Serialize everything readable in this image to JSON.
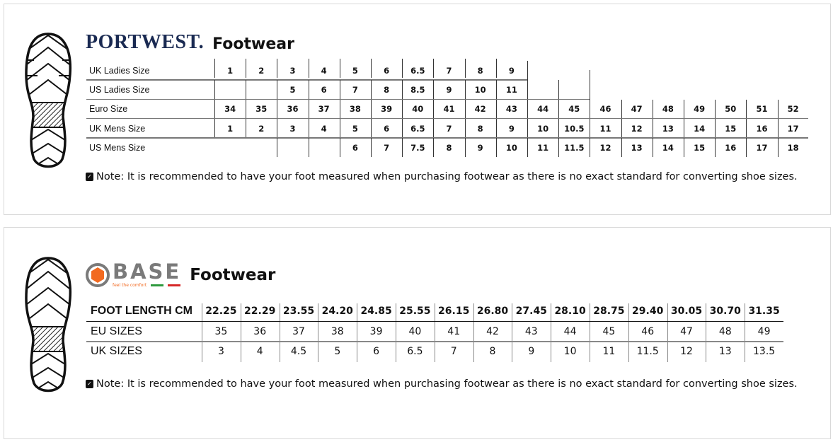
{
  "portwest": {
    "brand": "PORTWEST.",
    "title": "Footwear",
    "rows": [
      {
        "label": "UK Ladies Size",
        "values": [
          "1",
          "2",
          "3",
          "4",
          "5",
          "6",
          "6.5",
          "7",
          "8",
          "9"
        ]
      },
      {
        "label": "US Ladies Size",
        "values": [
          "",
          "",
          "5",
          "6",
          "7",
          "8",
          "8.5",
          "9",
          "10",
          "11",
          "",
          ""
        ]
      },
      {
        "label": "Euro Size",
        "values": [
          "34",
          "35",
          "36",
          "37",
          "38",
          "39",
          "40",
          "41",
          "42",
          "43",
          "44",
          "45",
          "46",
          "47",
          "48",
          "49",
          "50",
          "51",
          "52"
        ]
      },
      {
        "label": "UK Mens Size",
        "values": [
          "1",
          "2",
          "3",
          "4",
          "5",
          "6",
          "6.5",
          "7",
          "8",
          "9",
          "10",
          "10.5",
          "11",
          "12",
          "13",
          "14",
          "15",
          "16",
          "17"
        ]
      },
      {
        "label": "US Mens Size",
        "values": [
          "",
          "",
          "",
          "",
          "6",
          "7",
          "7.5",
          "8",
          "9",
          "10",
          "11",
          "11.5",
          "12",
          "13",
          "14",
          "15",
          "16",
          "17",
          "18"
        ]
      }
    ],
    "note": "Note: It is recommended to have your foot measured when purchasing footwear as there is no exact standard for converting shoe sizes."
  },
  "base": {
    "brand": "BASE",
    "tagline": "feel the comfort",
    "title": "Footwear",
    "rows": [
      {
        "label": "FOOT LENGTH CM",
        "values": [
          "22.25",
          "22.29",
          "23.55",
          "24.20",
          "24.85",
          "25.55",
          "26.15",
          "26.80",
          "27.45",
          "28.10",
          "28.75",
          "29.40",
          "30.05",
          "30.70",
          "31.35"
        ]
      },
      {
        "label": "EU SIZES",
        "values": [
          "35",
          "36",
          "37",
          "38",
          "39",
          "40",
          "41",
          "42",
          "43",
          "44",
          "45",
          "46",
          "47",
          "48",
          "49"
        ]
      },
      {
        "label": "UK SIZES",
        "values": [
          "3",
          "4",
          "4.5",
          "5",
          "6",
          "6.5",
          "7",
          "8",
          "9",
          "10",
          "11",
          "11.5",
          "12",
          "13",
          "13.5"
        ]
      }
    ],
    "note": "Note: It is recommended to have your foot measured when purchasing footwear as there is no exact standard for converting shoe sizes."
  },
  "colors": {
    "portwest_navy": "#1a2a52",
    "base_orange": "#f26a21",
    "base_gray": "#7a7a7a"
  }
}
